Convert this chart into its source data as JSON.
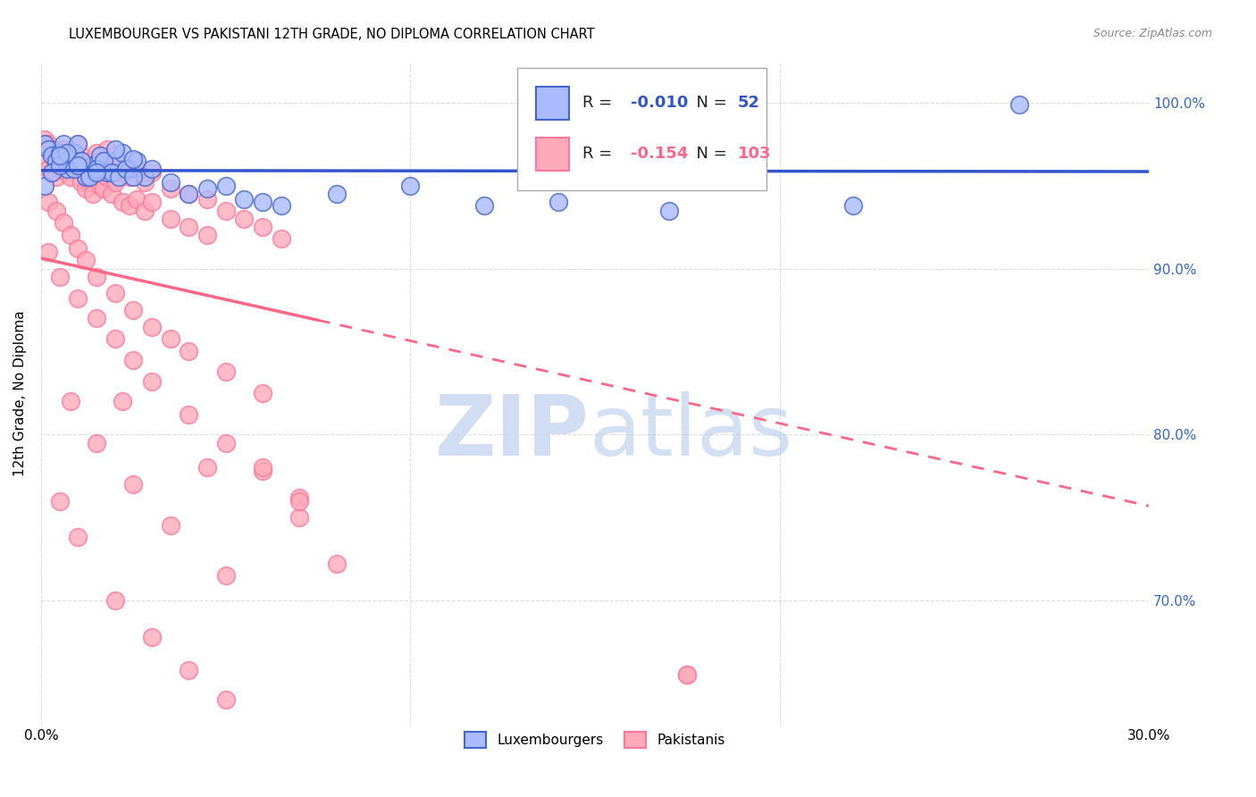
{
  "title": "LUXEMBOURGER VS PAKISTANI 12TH GRADE, NO DIPLOMA CORRELATION CHART",
  "source": "Source: ZipAtlas.com",
  "ylabel": "12th Grade, No Diploma",
  "x_range": [
    0.0,
    0.3
  ],
  "y_range": [
    0.625,
    1.025
  ],
  "lux_color": "#aabbff",
  "lux_edge_color": "#4466cc",
  "pak_color": "#ffaabb",
  "pak_edge_color": "#ff7799",
  "lux_line_color": "#3355cc",
  "pak_line_color": "#ff6688",
  "lux_r": -0.01,
  "pak_r": -0.154,
  "lux_n": 52,
  "pak_n": 103,
  "lux_points": {
    "x": [
      0.001,
      0.002,
      0.003,
      0.004,
      0.005,
      0.006,
      0.007,
      0.008,
      0.009,
      0.01,
      0.012,
      0.014,
      0.016,
      0.018,
      0.02,
      0.022,
      0.024,
      0.026,
      0.028,
      0.03,
      0.001,
      0.003,
      0.005,
      0.007,
      0.009,
      0.011,
      0.013,
      0.015,
      0.017,
      0.019,
      0.021,
      0.023,
      0.025,
      0.04,
      0.05,
      0.06,
      0.035,
      0.045,
      0.055,
      0.065,
      0.08,
      0.1,
      0.12,
      0.14,
      0.17,
      0.22,
      0.265,
      0.005,
      0.01,
      0.015,
      0.02,
      0.025
    ],
    "y": [
      0.975,
      0.972,
      0.968,
      0.965,
      0.97,
      0.975,
      0.96,
      0.965,
      0.97,
      0.975,
      0.955,
      0.962,
      0.968,
      0.958,
      0.965,
      0.97,
      0.96,
      0.965,
      0.955,
      0.96,
      0.95,
      0.958,
      0.962,
      0.97,
      0.96,
      0.965,
      0.955,
      0.96,
      0.965,
      0.958,
      0.955,
      0.96,
      0.955,
      0.945,
      0.95,
      0.94,
      0.952,
      0.948,
      0.942,
      0.938,
      0.945,
      0.95,
      0.938,
      0.94,
      0.935,
      0.938,
      0.999,
      0.968,
      0.962,
      0.958,
      0.972,
      0.966
    ]
  },
  "pak_points": {
    "x": [
      0.001,
      0.001,
      0.002,
      0.002,
      0.003,
      0.003,
      0.004,
      0.004,
      0.005,
      0.005,
      0.006,
      0.006,
      0.007,
      0.007,
      0.008,
      0.008,
      0.009,
      0.009,
      0.01,
      0.01,
      0.011,
      0.011,
      0.012,
      0.012,
      0.013,
      0.013,
      0.014,
      0.014,
      0.015,
      0.015,
      0.016,
      0.016,
      0.017,
      0.017,
      0.018,
      0.018,
      0.019,
      0.019,
      0.02,
      0.02,
      0.022,
      0.022,
      0.024,
      0.024,
      0.026,
      0.026,
      0.028,
      0.028,
      0.03,
      0.03,
      0.035,
      0.035,
      0.04,
      0.04,
      0.045,
      0.045,
      0.05,
      0.055,
      0.06,
      0.065,
      0.002,
      0.004,
      0.006,
      0.008,
      0.01,
      0.012,
      0.015,
      0.02,
      0.025,
      0.03,
      0.035,
      0.04,
      0.05,
      0.06,
      0.002,
      0.005,
      0.01,
      0.015,
      0.02,
      0.025,
      0.03,
      0.04,
      0.05,
      0.06,
      0.07,
      0.008,
      0.015,
      0.025,
      0.035,
      0.05,
      0.005,
      0.01,
      0.02,
      0.03,
      0.04,
      0.05,
      0.06,
      0.07,
      0.08,
      0.175,
      0.022,
      0.045,
      0.07,
      0.175
    ],
    "y": [
      0.978,
      0.965,
      0.975,
      0.96,
      0.972,
      0.958,
      0.968,
      0.955,
      0.97,
      0.96,
      0.972,
      0.962,
      0.968,
      0.958,
      0.965,
      0.955,
      0.97,
      0.96,
      0.975,
      0.962,
      0.968,
      0.952,
      0.962,
      0.948,
      0.965,
      0.952,
      0.96,
      0.945,
      0.97,
      0.955,
      0.965,
      0.95,
      0.96,
      0.948,
      0.972,
      0.955,
      0.96,
      0.945,
      0.968,
      0.952,
      0.958,
      0.94,
      0.955,
      0.938,
      0.96,
      0.942,
      0.952,
      0.935,
      0.958,
      0.94,
      0.948,
      0.93,
      0.945,
      0.925,
      0.942,
      0.92,
      0.935,
      0.93,
      0.925,
      0.918,
      0.94,
      0.935,
      0.928,
      0.92,
      0.912,
      0.905,
      0.895,
      0.885,
      0.875,
      0.865,
      0.858,
      0.85,
      0.838,
      0.825,
      0.91,
      0.895,
      0.882,
      0.87,
      0.858,
      0.845,
      0.832,
      0.812,
      0.795,
      0.778,
      0.762,
      0.82,
      0.795,
      0.77,
      0.745,
      0.715,
      0.76,
      0.738,
      0.7,
      0.678,
      0.658,
      0.64,
      0.78,
      0.75,
      0.722,
      0.655,
      0.82,
      0.78,
      0.76,
      0.655
    ]
  },
  "pak_trend_end_x": 0.075,
  "yticks": [
    0.7,
    0.8,
    0.9,
    1.0
  ],
  "ytick_labels": [
    "70.0%",
    "80.0%",
    "90.0%",
    "100.0%"
  ],
  "xticks": [
    0.0,
    0.1,
    0.2,
    0.3
  ],
  "xtick_labels": [
    "0.0%",
    "",
    "",
    "30.0%"
  ],
  "grid_color": "#dddddd",
  "right_axis_color": "#3366cc",
  "watermark_zip_color": "#c8d8f0",
  "watermark_atlas_color": "#b0c8e8"
}
